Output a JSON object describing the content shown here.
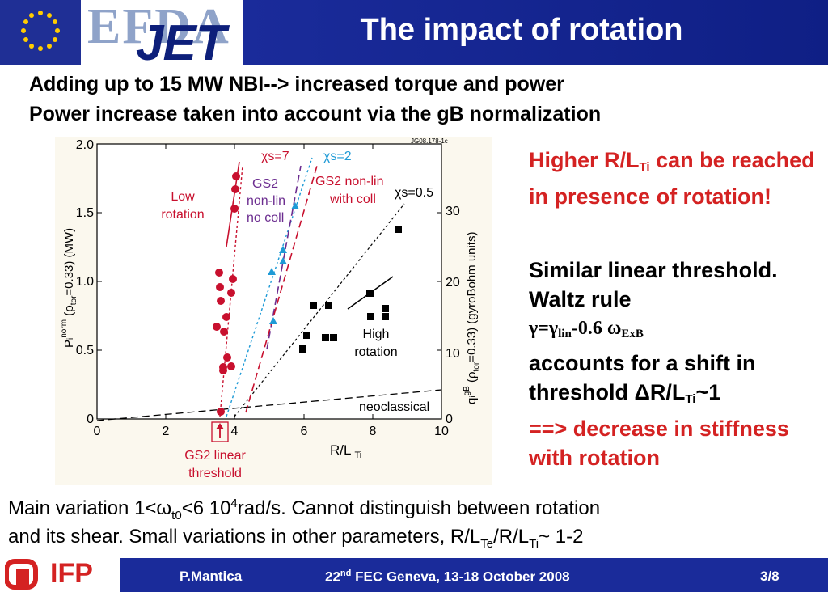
{
  "header": {
    "logo_efda": "EFDA",
    "logo_jet": "JET",
    "title": "The impact of rotation"
  },
  "subtitle": {
    "line1": "Adding up to 15 MW NBI--> increased torque and power",
    "line2": "Power increase taken into account via the gB normalization"
  },
  "figure": {
    "id_label": "JG08.178-1c",
    "left_axis_title": "P",
    "right_axis_title": "q",
    "x_axis_title": "R/L",
    "x_axis_sub": "Ti",
    "left_ticks": [
      "0",
      "0.5",
      "1.0",
      "1.5",
      "2.0"
    ],
    "right_ticks": [
      "0",
      "10",
      "20",
      "30"
    ],
    "x_ticks": [
      "0",
      "2",
      "4",
      "6",
      "8",
      "10"
    ],
    "labels": {
      "chi7": "χs=7",
      "chi2": "χs=2",
      "chi05": "χs=0.5",
      "low_rotation_1": "Low",
      "low_rotation_2": "rotation",
      "gs2_nonlin_1": "GS2",
      "gs2_nonlin_2": "non-lin",
      "gs2_nonlin_3": "no coll",
      "gs2_coll_1": "GS2 non-lin",
      "gs2_coll_2": "with coll",
      "high_rotation_1": "High",
      "high_rotation_2": "rotation",
      "neoclassical": "neoclassical",
      "gs2_linear_1": "GS2 linear",
      "gs2_linear_2": "threshold"
    },
    "colors": {
      "red": "#c8102e",
      "blue": "#1e9ad6",
      "purple": "#6b2c8f",
      "black": "#000000"
    }
  },
  "right": {
    "p1_a": "Higher R/L",
    "p1_sub": "Ti",
    "p1_b": " can be reached in presence of rotation!",
    "p2_a": "Similar linear threshold. Waltz rule",
    "p2_formula_a": "γ=γ",
    "p2_formula_sub1": "lin",
    "p2_formula_b": "-0.6 ω",
    "p2_formula_sub2": "ExB",
    "p2_b": "accounts for a shift in threshold ΔR/L",
    "p2_sub": "Ti",
    "p2_c": "~1",
    "p2_d": "==> decrease in stiffness with rotation"
  },
  "bottom": {
    "line1_a": "Main variation 1<ω",
    "line1_sub": "t0",
    "line1_b": "<6 10",
    "line1_sup": "4",
    "line1_c": "rad/s. Cannot distinguish between rotation",
    "line2_a": "and its shear. Small variations in other parameters, R/L",
    "line2_sub1": "Te",
    "line2_b": "/R/L",
    "line2_sub2": "Ti",
    "line2_c": "~ 1-2"
  },
  "footer": {
    "ifp": "IFP",
    "author": "P.Mantica",
    "conf_a": "22",
    "conf_sup": "nd",
    "conf_b": " FEC Geneva, 13-18 October 2008",
    "page": "3/8"
  }
}
